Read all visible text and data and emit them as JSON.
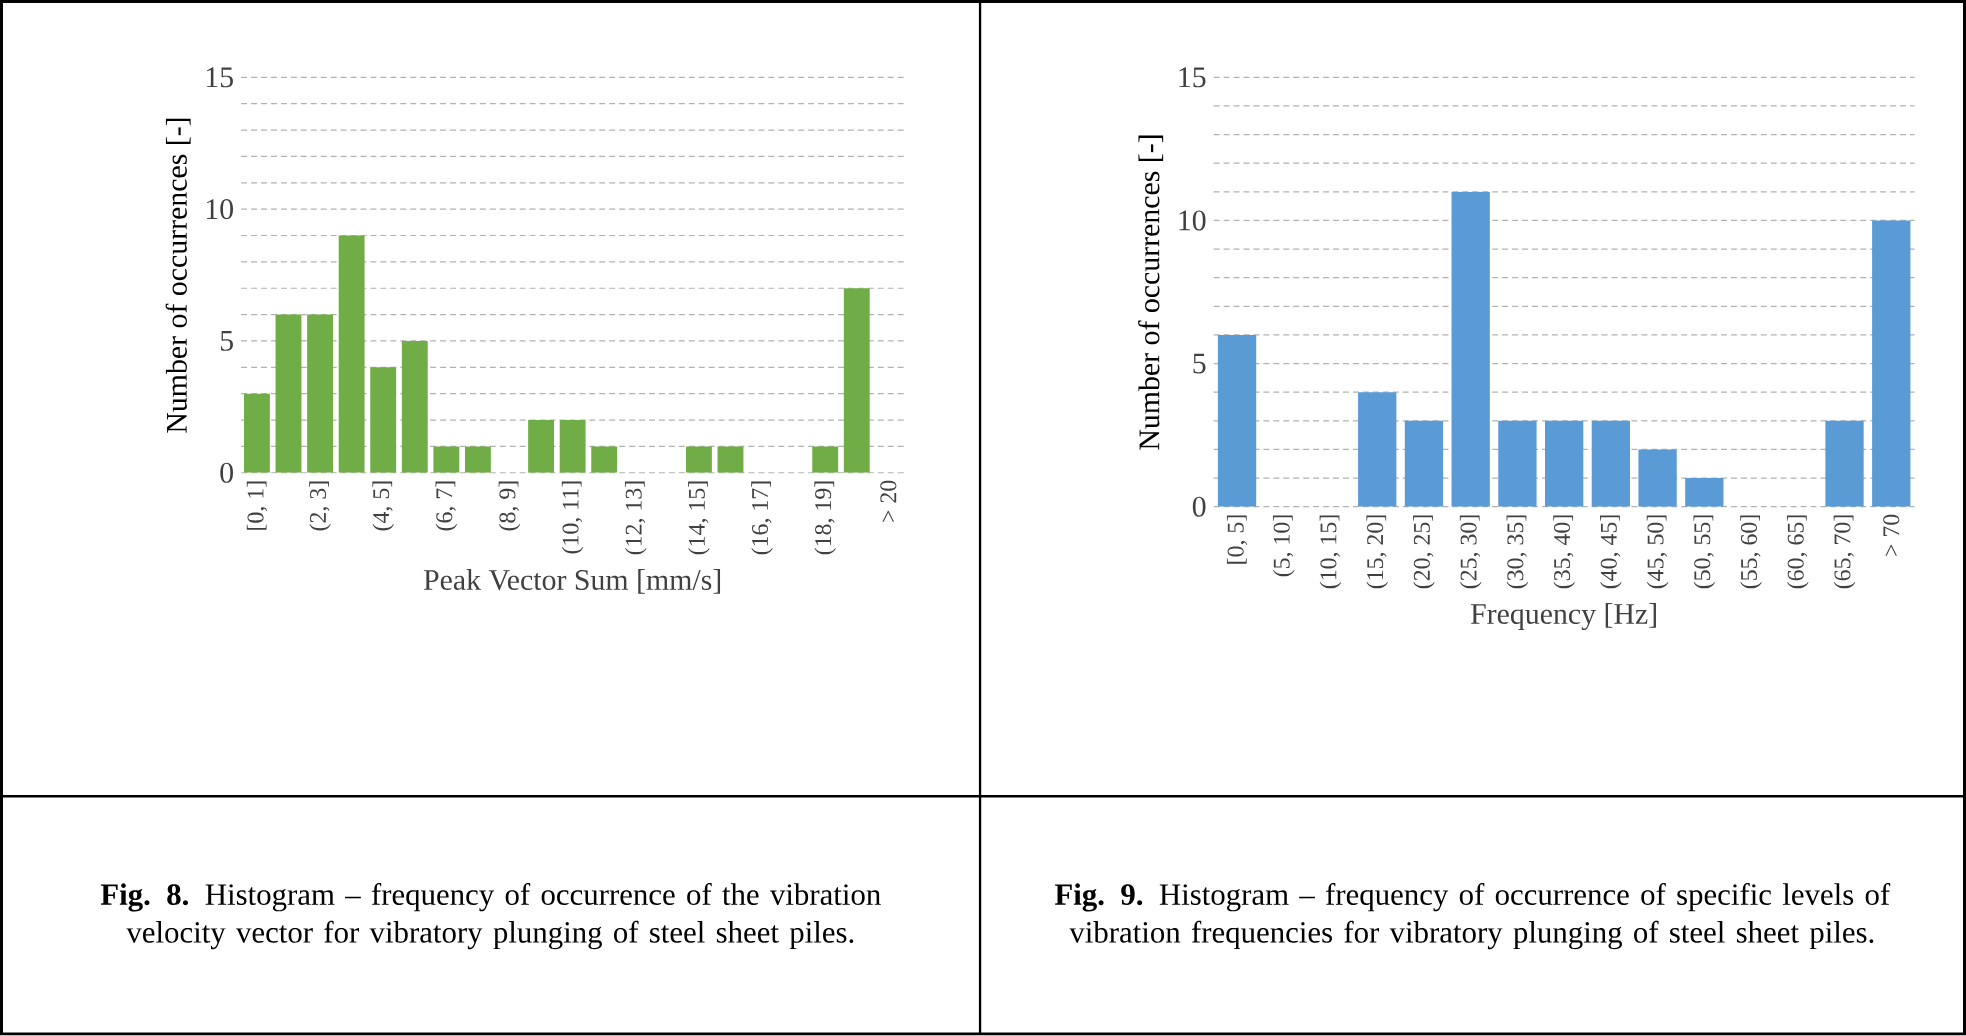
{
  "chart_data": [
    {
      "type": "bar",
      "xlabel": "Peak Vector Sum [mm/s]",
      "ylabel": "Number of occurrences [-]",
      "categories": [
        "[0, 1]",
        null,
        "(2, 3]",
        null,
        "(4, 5]",
        null,
        "(6, 7]",
        null,
        "(8, 9]",
        null,
        "(10, 11]",
        null,
        "(12, 13]",
        null,
        "(14, 15]",
        null,
        "(16, 17]",
        null,
        "(18, 19]",
        null,
        "> 20"
      ],
      "values": [
        3,
        6,
        6,
        9,
        4,
        5,
        1,
        1,
        0,
        2,
        2,
        1,
        0,
        0,
        1,
        1,
        0,
        0,
        1,
        7,
        0
      ],
      "color": "#70ad47",
      "ylim": [
        0,
        15
      ],
      "yticks": [
        0,
        {
          "value": 1,
          "label": null
        },
        {
          "value": 2,
          "label": null
        },
        {
          "value": 3,
          "label": null
        },
        {
          "value": 4,
          "label": null
        },
        5,
        {
          "value": 6,
          "label": null
        },
        {
          "value": 7,
          "label": null
        },
        {
          "value": 8,
          "label": null
        },
        {
          "value": 9,
          "label": null
        },
        10,
        {
          "value": 11,
          "label": null
        },
        {
          "value": 12,
          "label": null
        },
        {
          "value": 13,
          "label": null
        },
        {
          "value": 14,
          "label": null
        },
        15
      ],
      "grid": "y",
      "annotations": [
        "**Fig. 8.** Histogram – frequency of occurrence of the vibration velocity vector for vibratory plunging of steel sheet piles."
      ]
    },
    {
      "type": "bar",
      "xlabel": "Frequency [Hz]",
      "ylabel": "Number of occurrences [-]",
      "categories": [
        "[0, 5]",
        "(5, 10]",
        "(10, 15]",
        "(15, 20]",
        "(20, 25]",
        "(25, 30]",
        "(30, 35]",
        "(35, 40]",
        "(40, 45]",
        "(45, 50]",
        "(50, 55]",
        "(55, 60]",
        "(60, 65]",
        "(65, 70]",
        "> 70"
      ],
      "values": [
        6,
        0,
        0,
        4,
        3,
        11,
        3,
        3,
        3,
        2,
        1,
        0,
        0,
        3,
        10
      ],
      "color": "#5b9bd5",
      "ylim": [
        0,
        15
      ],
      "yticks": [
        0,
        {
          "value": 1,
          "label": null
        },
        {
          "value": 2,
          "label": null
        },
        {
          "value": 3,
          "label": null
        },
        {
          "value": 4,
          "label": null
        },
        5,
        {
          "value": 6,
          "label": null
        },
        {
          "value": 7,
          "label": null
        },
        {
          "value": 8,
          "label": null
        },
        {
          "value": 9,
          "label": null
        },
        10,
        {
          "value": 11,
          "label": null
        },
        {
          "value": 12,
          "label": null
        },
        {
          "value": 13,
          "label": null
        },
        {
          "value": 14,
          "label": null
        },
        15
      ],
      "grid": "y",
      "annotations": [
        "**Fig. 9.** Histogram – frequency of occurrence of specific levels of vibration frequencies for vibratory plunging of steel sheet piles."
      ]
    }
  ]
}
